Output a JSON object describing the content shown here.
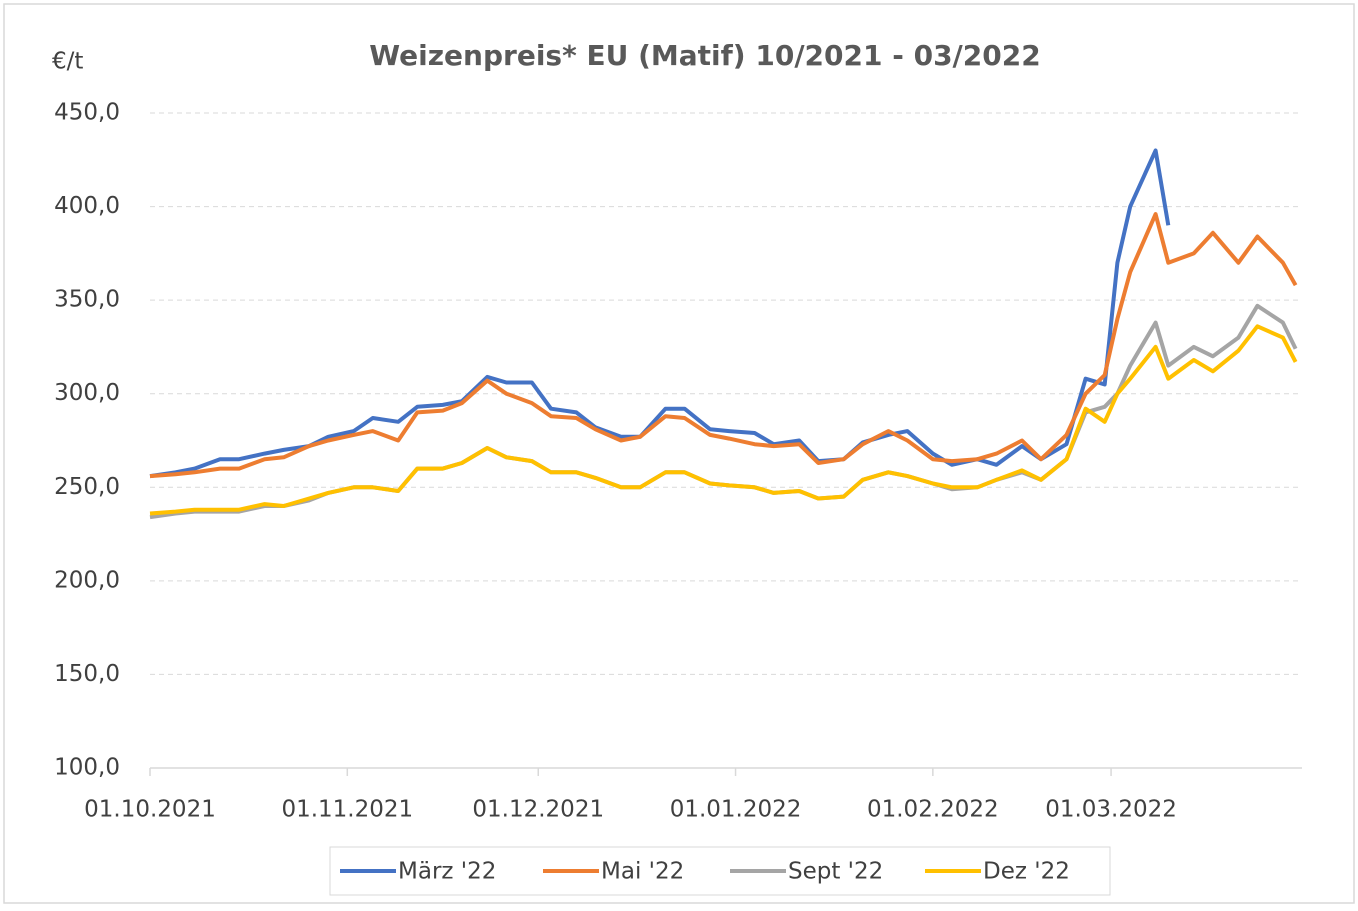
{
  "chart_data": {
    "type": "line",
    "title": "Weizenpreis* EU (Matif) 10/2021 - 03/2022",
    "y_label": "€/t",
    "x": [
      "01.10.2021",
      "05.10.2021",
      "08.10.2021",
      "12.10.2021",
      "15.10.2021",
      "19.10.2021",
      "22.10.2021",
      "26.10.2021",
      "29.10.2021",
      "02.11.2021",
      "05.11.2021",
      "09.11.2021",
      "12.11.2021",
      "16.11.2021",
      "19.11.2021",
      "23.11.2021",
      "26.11.2021",
      "30.11.2021",
      "03.12.2021",
      "07.12.2021",
      "10.12.2021",
      "14.12.2021",
      "17.12.2021",
      "21.12.2021",
      "24.12.2021",
      "28.12.2021",
      "31.12.2021",
      "04.01.2022",
      "07.01.2022",
      "11.01.2022",
      "14.01.2022",
      "18.01.2022",
      "21.01.2022",
      "25.01.2022",
      "28.01.2022",
      "01.02.2022",
      "04.02.2022",
      "08.02.2022",
      "11.02.2022",
      "15.02.2022",
      "18.02.2022",
      "22.02.2022",
      "25.02.2022",
      "28.02.2022",
      "02.03.2022",
      "04.03.2022",
      "08.03.2022",
      "10.03.2022",
      "14.03.2022",
      "17.03.2022",
      "21.03.2022",
      "24.03.2022",
      "28.03.2022",
      "30.03.2022"
    ],
    "series": [
      {
        "name": "März '22",
        "color": "#4472c4",
        "values": [
          256,
          258,
          260,
          265,
          265,
          268,
          270,
          272,
          277,
          280,
          287,
          285,
          293,
          294,
          296,
          309,
          306,
          306,
          292,
          290,
          282,
          277,
          277,
          292,
          292,
          281,
          280,
          279,
          273,
          275,
          264,
          265,
          274,
          278,
          280,
          268,
          262,
          265,
          262,
          272,
          265,
          273,
          308,
          305,
          370,
          400,
          430,
          390,
          null,
          null,
          null,
          null,
          null,
          null
        ]
      },
      {
        "name": "Mai '22",
        "color": "#ed7d31",
        "values": [
          256,
          257,
          258,
          260,
          260,
          265,
          266,
          272,
          275,
          278,
          280,
          275,
          290,
          291,
          295,
          307,
          300,
          295,
          288,
          287,
          281,
          275,
          277,
          288,
          287,
          278,
          276,
          273,
          272,
          273,
          263,
          265,
          273,
          280,
          275,
          265,
          264,
          265,
          268,
          275,
          265,
          278,
          300,
          310,
          340,
          365,
          396,
          370,
          375,
          386,
          370,
          384,
          370,
          358
        ]
      },
      {
        "name": "Sept '22",
        "color": "#a5a5a5",
        "values": [
          234,
          236,
          237,
          237,
          237,
          240,
          240,
          243,
          247,
          250,
          250,
          248,
          260,
          260,
          263,
          271,
          266,
          264,
          258,
          258,
          255,
          250,
          250,
          258,
          258,
          252,
          251,
          250,
          247,
          248,
          244,
          245,
          254,
          258,
          256,
          252,
          249,
          250,
          254,
          258,
          254,
          265,
          290,
          293,
          300,
          315,
          338,
          315,
          325,
          320,
          330,
          347,
          338,
          324
        ]
      },
      {
        "name": "Dez '22",
        "color": "#ffc000",
        "values": [
          236,
          237,
          238,
          238,
          238,
          241,
          240,
          244,
          247,
          250,
          250,
          248,
          260,
          260,
          263,
          271,
          266,
          264,
          258,
          258,
          255,
          250,
          250,
          258,
          258,
          252,
          251,
          250,
          247,
          248,
          244,
          245,
          254,
          258,
          256,
          252,
          250,
          250,
          254,
          259,
          254,
          265,
          292,
          285,
          300,
          308,
          325,
          308,
          318,
          312,
          323,
          336,
          330,
          317
        ]
      }
    ],
    "xlim": [
      "01.10.2021",
      "31.03.2022"
    ],
    "xticks": [
      "01.10.2021",
      "01.11.2021",
      "01.12.2021",
      "01.01.2022",
      "01.02.2022",
      "01.03.2022"
    ],
    "ylim": [
      100,
      450
    ],
    "yticks": [
      {
        "value": 100,
        "label": "100,0"
      },
      {
        "value": 150,
        "label": "150,0"
      },
      {
        "value": 200,
        "label": "200,0"
      },
      {
        "value": 250,
        "label": "250,0"
      },
      {
        "value": 300,
        "label": "300,0"
      },
      {
        "value": 350,
        "label": "350,0"
      },
      {
        "value": 400,
        "label": "400,0"
      },
      {
        "value": 450,
        "label": "450,0"
      }
    ],
    "grid": true,
    "legend": "bottom"
  }
}
